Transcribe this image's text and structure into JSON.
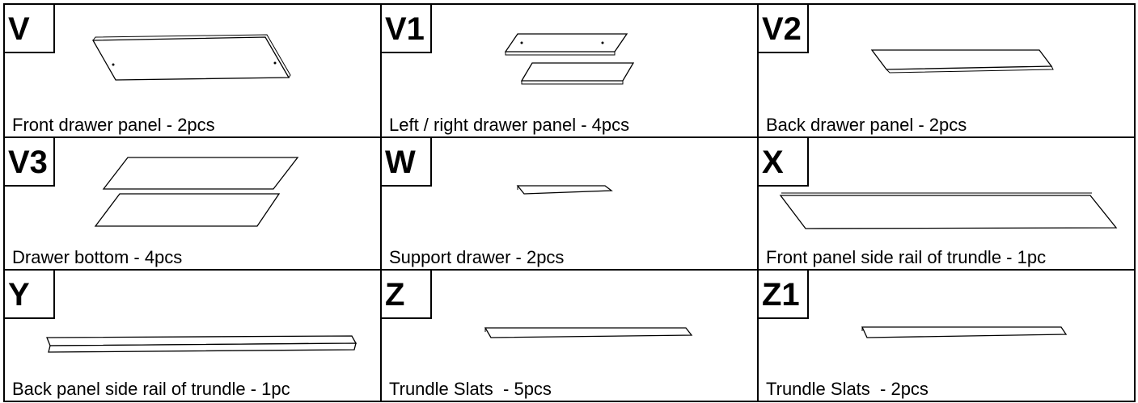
{
  "parts": [
    {
      "id": "V",
      "caption": "Front drawer panel - 2pcs"
    },
    {
      "id": "V1",
      "caption": "Left / right drawer panel - 4pcs"
    },
    {
      "id": "V2",
      "caption": "Back drawer panel - 2pcs"
    },
    {
      "id": "V3",
      "caption": "Drawer bottom - 4pcs"
    },
    {
      "id": "W",
      "caption": "Support drawer - 2pcs"
    },
    {
      "id": "X",
      "caption": "Front panel side rail of trundle - 1pc"
    },
    {
      "id": "Y",
      "caption": "Back panel side rail of trundle - 1pc"
    },
    {
      "id": "Z",
      "caption": "Trundle Slats  - 5pcs"
    },
    {
      "id": "Z1",
      "caption": "Trundle Slats  - 2pcs"
    }
  ]
}
